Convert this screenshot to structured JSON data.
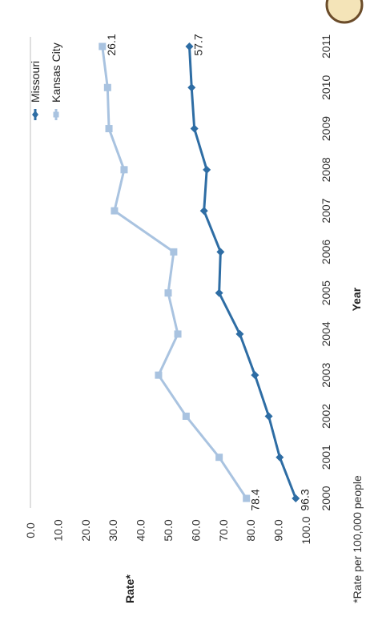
{
  "chart_data": {
    "type": "line",
    "title": "",
    "xlabel": "Year",
    "ylabel": "Rate*",
    "x": [
      "2000",
      "2001",
      "2002",
      "2003",
      "2004",
      "2005",
      "2006",
      "2007",
      "2008",
      "2009",
      "2010",
      "2011"
    ],
    "yticks": [
      "0.0",
      "10.0",
      "20.0",
      "30.0",
      "40.0",
      "50.0",
      "60.0",
      "70.0",
      "80.0",
      "90.0",
      "100.0"
    ],
    "ylim": [
      0,
      100
    ],
    "grid": false,
    "legend_position": "top-right",
    "orientation": "rotated 90 degrees clockwise",
    "series": [
      {
        "name": "Missouri",
        "color": "#2e6da4",
        "values": [
          96.3,
          90.5,
          86.5,
          81.5,
          76.0,
          68.5,
          69.0,
          63.0,
          64.0,
          59.5,
          58.5,
          57.7
        ]
      },
      {
        "name": "Kansas City",
        "color": "#a9c3e0",
        "values": [
          78.4,
          68.5,
          56.5,
          46.5,
          53.5,
          50.0,
          52.0,
          30.5,
          34.0,
          28.5,
          28.0,
          26.1
        ]
      }
    ],
    "data_labels": [
      {
        "series": 0,
        "index": 0,
        "text": "96.3"
      },
      {
        "series": 0,
        "index": 11,
        "text": "57.7"
      },
      {
        "series": 1,
        "index": 0,
        "text": "78.4"
      },
      {
        "series": 1,
        "index": 11,
        "text": "26.1"
      }
    ],
    "footnote": "*Rate per 100,000 people"
  }
}
